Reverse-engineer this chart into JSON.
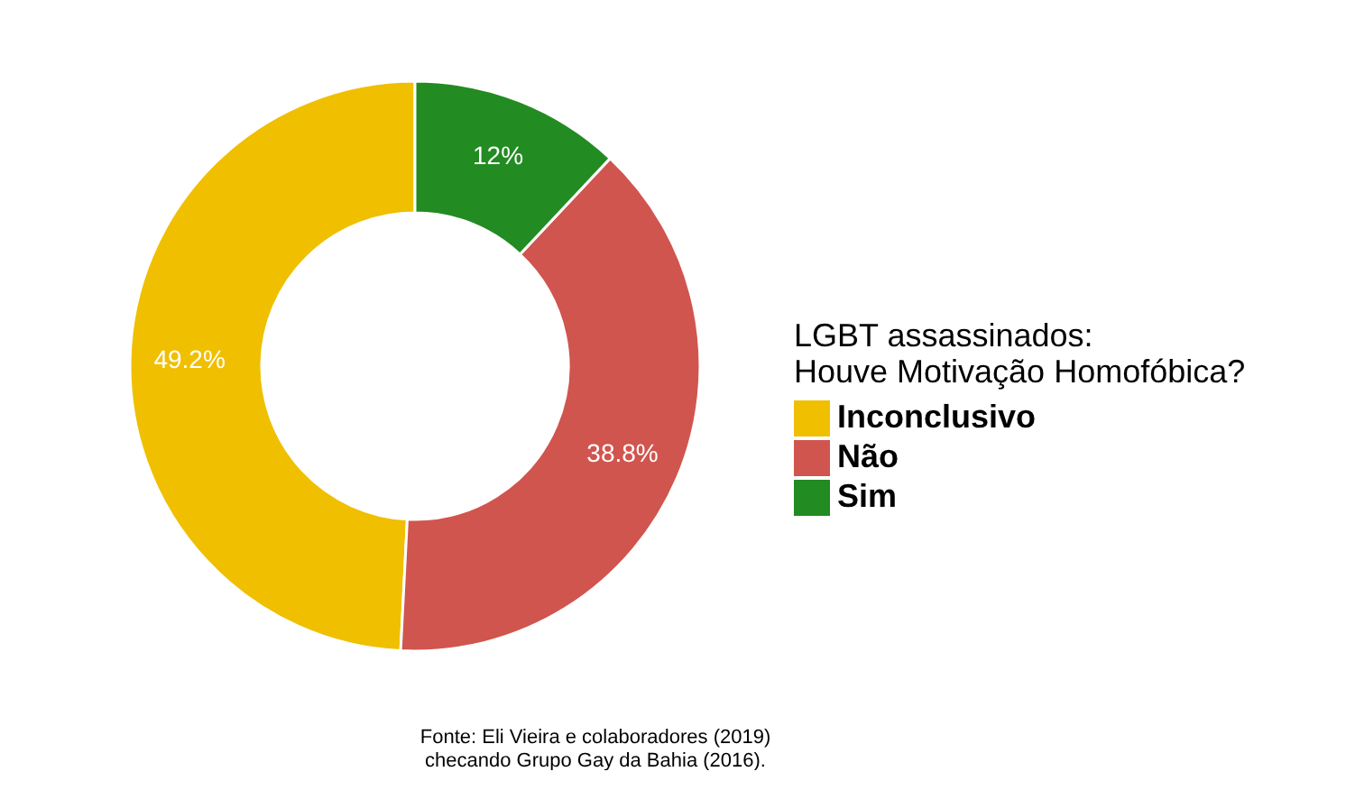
{
  "chart_data": {
    "type": "donut",
    "legend_title": "LGBT assassinados:\nHouve Motivação Homofóbica?",
    "categories": [
      "Inconclusivo",
      "Não",
      "Sim"
    ],
    "values": [
      49.2,
      38.8,
      12
    ],
    "colors": [
      "#f0bf00",
      "#d0554e",
      "#228b22"
    ],
    "value_labels": [
      "49.2%",
      "38.8%",
      "12%"
    ],
    "legend": "right",
    "annotations": [
      "Fonte: Eli Vieira e colaboradores (2019)\n checando Grupo Gay da Bahia (2016)."
    ]
  }
}
